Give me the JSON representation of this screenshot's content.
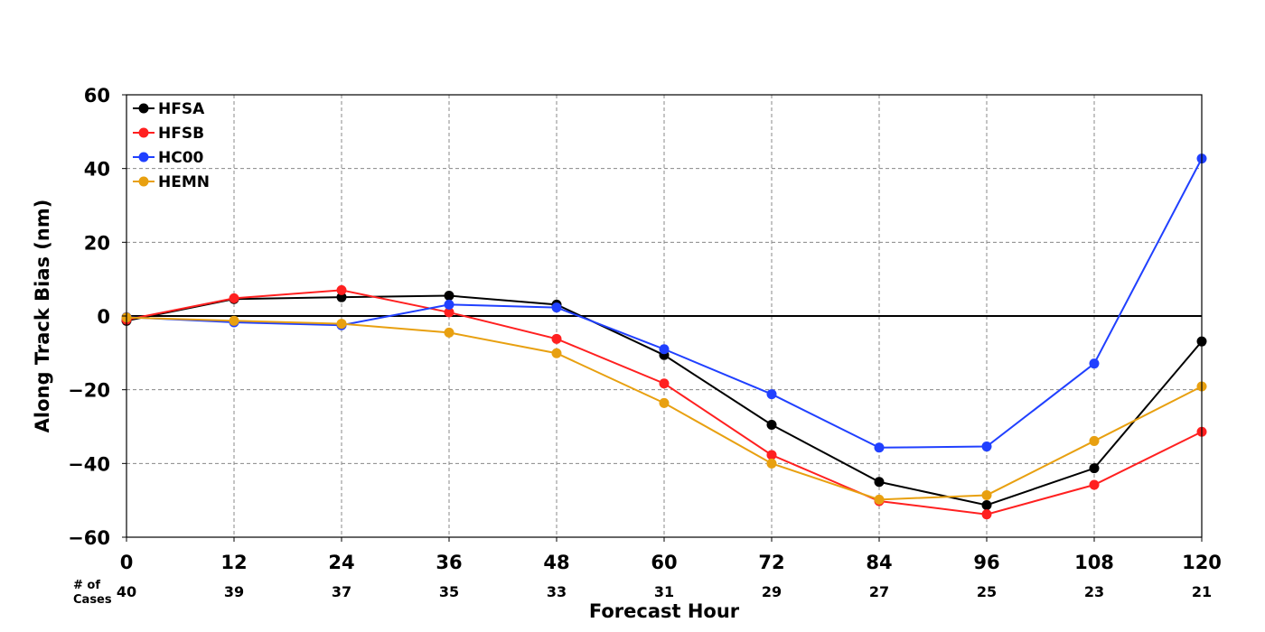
{
  "chart_data": {
    "type": "line",
    "xlabel": "Forecast Hour",
    "ylabel": "Along Track Bias (nm)",
    "x": [
      0,
      12,
      24,
      36,
      48,
      60,
      72,
      84,
      96,
      108,
      120
    ],
    "xticks": [
      "0",
      "12",
      "24",
      "36",
      "48",
      "60",
      "72",
      "84",
      "96",
      "108",
      "120"
    ],
    "yticks": [
      "60",
      "40",
      "20",
      "0",
      "−20",
      "−40",
      "−60"
    ],
    "ytick_values": [
      60,
      40,
      20,
      0,
      -20,
      -40,
      -60
    ],
    "xlim": [
      0,
      120
    ],
    "ylim": [
      -60,
      60
    ],
    "grid": true,
    "legend_position": "top-left",
    "cases_label_line1": "# of",
    "cases_label_line2": "Cases",
    "cases": [
      "40",
      "39",
      "37",
      "35",
      "33",
      "31",
      "29",
      "27",
      "25",
      "23",
      "21"
    ],
    "series": [
      {
        "name": "HFSA",
        "color": "#000000",
        "values": [
          -1.3,
          4.6,
          5.1,
          5.5,
          3.1,
          -10.6,
          -29.5,
          -45.0,
          -51.3,
          -41.3,
          -6.9
        ]
      },
      {
        "name": "HFSB",
        "color": "#ff2020",
        "values": [
          -1.0,
          4.8,
          7.0,
          1.0,
          -6.2,
          -18.3,
          -37.7,
          -50.2,
          -53.8,
          -45.8,
          -31.4
        ]
      },
      {
        "name": "HC00",
        "color": "#2040ff",
        "values": [
          -0.3,
          -1.7,
          -2.5,
          3.1,
          2.3,
          -9.0,
          -21.2,
          -35.7,
          -35.4,
          -12.9,
          42.7
        ]
      },
      {
        "name": "HEMN",
        "color": "#e8a010",
        "values": [
          -0.4,
          -1.3,
          -2.1,
          -4.5,
          -10.1,
          -23.6,
          -40.0,
          -49.8,
          -48.6,
          -33.9,
          -19.1
        ]
      }
    ]
  }
}
